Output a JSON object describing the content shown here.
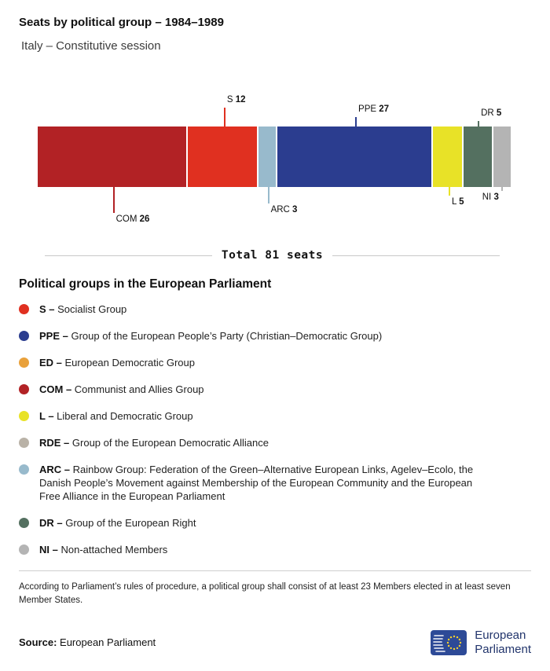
{
  "header": {
    "title": "Seats by political group – 1984–1989",
    "subtitle": "Italy – Constitutive session"
  },
  "chart_data": {
    "type": "bar",
    "title": "Seats by political group – 1984–1989",
    "subtitle": "Italy – Constitutive session",
    "total": 81,
    "total_label": "Total 81 seats",
    "series": [
      {
        "name": "COM",
        "value": 26,
        "color": "#b22225",
        "callout": "bottom",
        "line_len": 33
      },
      {
        "name": "S",
        "value": 12,
        "color": "#e03020",
        "callout": "top",
        "line_len": 24
      },
      {
        "name": "ARC",
        "value": 3,
        "color": "#98bacc",
        "callout": "bottom",
        "line_len": 21
      },
      {
        "name": "PPE",
        "value": 27,
        "color": "#2b3d8f",
        "callout": "top",
        "line_len": 12
      },
      {
        "name": "L",
        "value": 5,
        "color": "#e8e227",
        "callout": "bottom",
        "line_len": 11
      },
      {
        "name": "DR",
        "value": 5,
        "color": "#547060",
        "callout": "top",
        "line_len": 7
      },
      {
        "name": "NI",
        "value": 3,
        "color": "#b4b4b4",
        "callout": "bottom",
        "line_len": 5,
        "label_side": "left"
      }
    ]
  },
  "legend": {
    "heading": "Political groups in the European Parliament",
    "items": [
      {
        "abbr": "S",
        "label": "Socialist Group",
        "color": "#e03020"
      },
      {
        "abbr": "PPE",
        "label": "Group of the European People’s Party (Christian–Democratic Group)",
        "color": "#2b3d8f"
      },
      {
        "abbr": "ED",
        "label": "European Democratic Group",
        "color": "#e9a13b"
      },
      {
        "abbr": "COM",
        "label": "Communist and Allies Group",
        "color": "#b22225"
      },
      {
        "abbr": "L",
        "label": "Liberal and Democratic Group",
        "color": "#e8e227"
      },
      {
        "abbr": "RDE",
        "label": "Group of the European Democratic Alliance",
        "color": "#b9b2a7"
      },
      {
        "abbr": "ARC",
        "label": "Rainbow Group: Federation of the Green–Alternative European Links, Agelev–Ecolo, the Danish People’s Movement against Membership of the European Community and the European Free Alliance in the European Parliament",
        "color": "#98bacc"
      },
      {
        "abbr": "DR",
        "label": "Group of the European Right",
        "color": "#547060"
      },
      {
        "abbr": "NI",
        "label": "Non-attached Members",
        "color": "#b4b4b4"
      }
    ]
  },
  "footer": {
    "note": "According to Parliament’s rules of procedure, a political group shall consist of at least 23 Members elected in at least seven Member States.",
    "source_label": "Source:",
    "source_value": "European Parliament",
    "logo_line1": "European",
    "logo_line2": "Parliament"
  }
}
